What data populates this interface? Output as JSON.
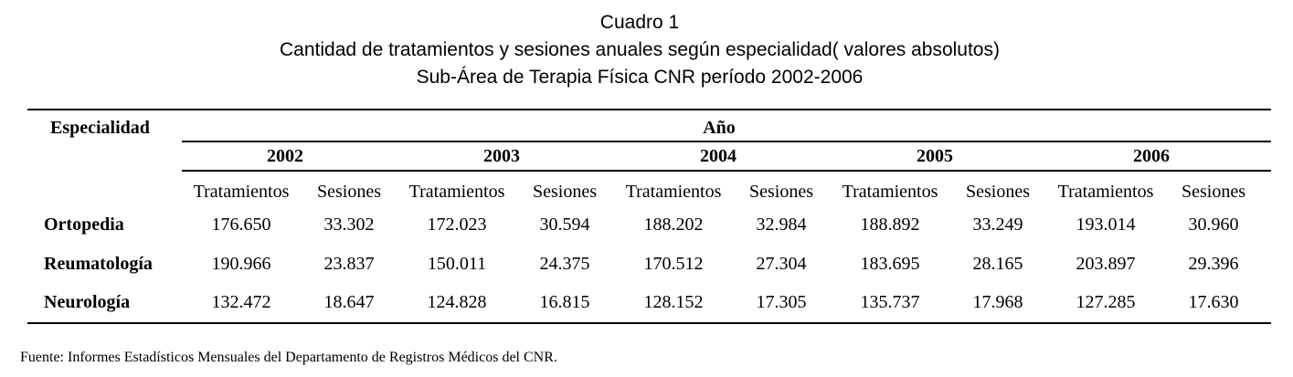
{
  "title": "Cuadro 1",
  "subtitle1": "Cantidad de tratamientos  y sesiones anuales según especialidad( valores absolutos)",
  "subtitle2": "Sub-Área de Terapia Física CNR  período 2002-2006",
  "table": {
    "row_header": "Especialidad",
    "group_header": "Año",
    "years": [
      "2002",
      "2003",
      "2004",
      "2005",
      "2006"
    ],
    "subheaders": {
      "treatments": "Tratamientos",
      "sessions": "Sesiones"
    },
    "rows": [
      {
        "label": "Ortopedia",
        "values": [
          "176.650",
          "33.302",
          "172.023",
          "30.594",
          "188.202",
          "32.984",
          "188.892",
          "33.249",
          "193.014",
          "30.960"
        ]
      },
      {
        "label": "Reumatología",
        "values": [
          "190.966",
          "23.837",
          "150.011",
          "24.375",
          "170.512",
          "27.304",
          "183.695",
          "28.165",
          "203.897",
          "29.396"
        ]
      },
      {
        "label": "Neurología",
        "values": [
          "132.472",
          "18.647",
          "124.828",
          "16.815",
          "128.152",
          "17.305",
          "135.737",
          "17.968",
          "127.285",
          "17.630"
        ]
      }
    ]
  },
  "source": "Fuente: Informes Estadísticos Mensuales del Departamento de Registros Médicos del CNR."
}
